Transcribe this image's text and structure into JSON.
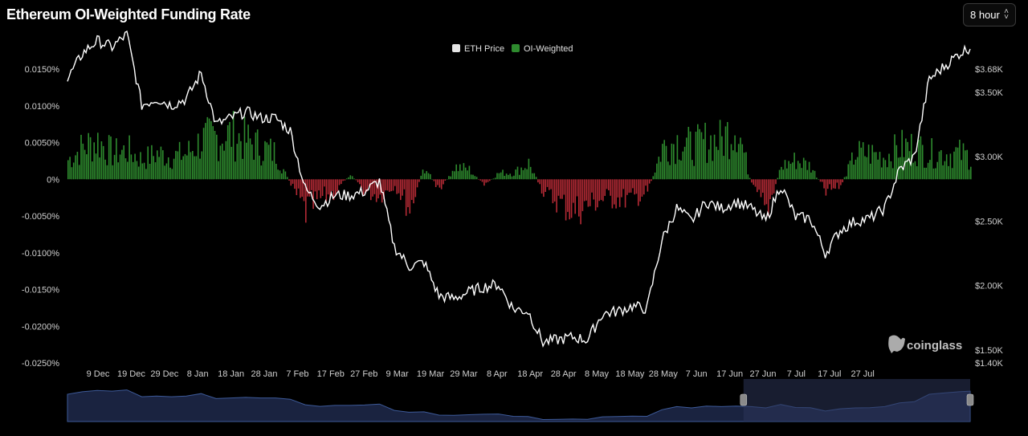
{
  "header": {
    "title": "Ethereum OI-Weighted Funding Rate",
    "interval_value": "8 hour"
  },
  "colors": {
    "positive": "#2e8b2e",
    "negative": "#b52a35",
    "price_line": "#ffffff",
    "navigator_line": "#3d5a99",
    "navigator_fill": "#1a2340",
    "navigator_mask": "#2b3558",
    "axis_text": "#cfcfcf"
  },
  "watermark": "coinglass",
  "chart_data": {
    "type": "bar",
    "title": "Ethereum OI-Weighted Funding Rate",
    "legend": {
      "position": "top-center",
      "items": [
        "ETH Price",
        "OI-Weighted"
      ]
    },
    "x_ticks": [
      "9 Dec",
      "19 Dec",
      "29 Dec",
      "8 Jan",
      "18 Jan",
      "28 Jan",
      "7 Feb",
      "17 Feb",
      "27 Feb",
      "9 Mar",
      "19 Mar",
      "29 Mar",
      "8 Apr",
      "18 Apr",
      "28 Apr",
      "8 May",
      "18 May",
      "28 May",
      "7 Jun",
      "17 Jun",
      "27 Jun",
      "7 Jul",
      "17 Jul",
      "27 Jul"
    ],
    "y_left": {
      "label": "",
      "range": [
        -0.025,
        0.015
      ],
      "tick_values": [
        0.015,
        0.01,
        0.005,
        0,
        -0.005,
        -0.01,
        -0.015,
        -0.02,
        -0.025
      ],
      "tick_labels": [
        "0.0150%",
        "0.0100%",
        "0.0050%",
        "0%",
        "-0.0050%",
        "-0.0100%",
        "-0.0150%",
        "-0.0200%",
        "-0.0250%"
      ]
    },
    "y_right": {
      "label": "",
      "tick_values": [
        3680,
        3500,
        3000,
        2500,
        2000,
        1500,
        1400
      ],
      "tick_labels": [
        "$3.68K",
        "$3.50K",
        "$3.00K",
        "$2.50K",
        "$2.00K",
        "$1.50K",
        "$1.40K"
      ]
    },
    "series": [
      {
        "name": "OI-Weighted",
        "unit": "%",
        "points": [
          [
            "2024-12-01",
            0.003
          ],
          [
            "2024-12-05",
            0.005
          ],
          [
            "2024-12-09",
            0.006
          ],
          [
            "2024-12-13",
            0.004
          ],
          [
            "2024-12-17",
            0.0045
          ],
          [
            "2024-12-21",
            0.003
          ],
          [
            "2024-12-25",
            0.004
          ],
          [
            "2024-12-29",
            0.0035
          ],
          [
            "2025-01-02",
            0.004
          ],
          [
            "2025-01-06",
            0.006
          ],
          [
            "2025-01-10",
            0.0065
          ],
          [
            "2025-01-14",
            0.007
          ],
          [
            "2025-01-18",
            0.006
          ],
          [
            "2025-01-22",
            0.005
          ],
          [
            "2025-01-26",
            0.004
          ],
          [
            "2025-01-30",
            -0.001
          ],
          [
            "2025-02-03",
            -0.005
          ],
          [
            "2025-02-07",
            -0.003
          ],
          [
            "2025-02-11",
            -0.002
          ],
          [
            "2025-02-15",
            0.001
          ],
          [
            "2025-02-19",
            -0.002
          ],
          [
            "2025-02-23",
            -0.0025
          ],
          [
            "2025-02-27",
            -0.001
          ],
          [
            "2025-03-03",
            -0.0045
          ],
          [
            "2025-03-07",
            0.002
          ],
          [
            "2025-03-11",
            -0.002
          ],
          [
            "2025-03-15",
            0.002
          ],
          [
            "2025-03-19",
            0.0015
          ],
          [
            "2025-03-23",
            -0.001
          ],
          [
            "2025-03-27",
            0.001
          ],
          [
            "2025-03-31",
            0.001
          ],
          [
            "2025-04-04",
            0.0025
          ],
          [
            "2025-04-08",
            -0.002
          ],
          [
            "2025-04-12",
            -0.0035
          ],
          [
            "2025-04-16",
            -0.005
          ],
          [
            "2025-04-20",
            -0.004
          ],
          [
            "2025-04-24",
            -0.003
          ],
          [
            "2025-04-28",
            -0.003
          ],
          [
            "2025-05-02",
            -0.003
          ],
          [
            "2025-05-06",
            -0.002
          ],
          [
            "2025-05-10",
            0.005
          ],
          [
            "2025-05-14",
            0.006
          ],
          [
            "2025-05-18",
            0.005
          ],
          [
            "2025-05-22",
            0.006
          ],
          [
            "2025-05-26",
            0.006
          ],
          [
            "2025-05-30",
            0.009
          ],
          [
            "2025-06-03",
            -0.001
          ],
          [
            "2025-06-07",
            -0.005
          ],
          [
            "2025-06-11",
            0.002
          ],
          [
            "2025-06-15",
            0.003
          ],
          [
            "2025-06-19",
            0.002
          ],
          [
            "2025-06-23",
            -0.002
          ],
          [
            "2025-06-27",
            -0.001
          ],
          [
            "2025-07-01",
            0.004
          ],
          [
            "2025-07-05",
            0.004
          ],
          [
            "2025-07-09",
            0.0035
          ],
          [
            "2025-07-13",
            0.005
          ],
          [
            "2025-07-17",
            0.005
          ],
          [
            "2025-07-21",
            0.004
          ],
          [
            "2025-07-25",
            0.004
          ],
          [
            "2025-07-29",
            0.004
          ],
          [
            "2025-08-01",
            0.0035
          ]
        ]
      },
      {
        "name": "ETH Price",
        "unit": "USD",
        "points": [
          [
            "2024-12-01",
            3600
          ],
          [
            "2024-12-05",
            3800
          ],
          [
            "2024-12-09",
            3900
          ],
          [
            "2024-12-13",
            3850
          ],
          [
            "2024-12-17",
            3950
          ],
          [
            "2024-12-21",
            3400
          ],
          [
            "2024-12-25",
            3450
          ],
          [
            "2024-12-29",
            3400
          ],
          [
            "2025-01-02",
            3450
          ],
          [
            "2025-01-06",
            3650
          ],
          [
            "2025-01-10",
            3250
          ],
          [
            "2025-01-14",
            3300
          ],
          [
            "2025-01-18",
            3350
          ],
          [
            "2025-01-22",
            3300
          ],
          [
            "2025-01-26",
            3300
          ],
          [
            "2025-01-30",
            3200
          ],
          [
            "2025-02-03",
            2750
          ],
          [
            "2025-02-07",
            2620
          ],
          [
            "2025-02-11",
            2700
          ],
          [
            "2025-02-15",
            2700
          ],
          [
            "2025-02-19",
            2730
          ],
          [
            "2025-02-23",
            2810
          ],
          [
            "2025-02-27",
            2300
          ],
          [
            "2025-03-03",
            2150
          ],
          [
            "2025-03-07",
            2180
          ],
          [
            "2025-03-11",
            1920
          ],
          [
            "2025-03-15",
            1900
          ],
          [
            "2025-03-19",
            1950
          ],
          [
            "2025-03-23",
            1990
          ],
          [
            "2025-03-27",
            2010
          ],
          [
            "2025-03-31",
            1820
          ],
          [
            "2025-04-04",
            1800
          ],
          [
            "2025-04-08",
            1560
          ],
          [
            "2025-04-12",
            1580
          ],
          [
            "2025-04-16",
            1600
          ],
          [
            "2025-04-20",
            1580
          ],
          [
            "2025-04-24",
            1780
          ],
          [
            "2025-04-28",
            1800
          ],
          [
            "2025-05-02",
            1840
          ],
          [
            "2025-05-06",
            1820
          ],
          [
            "2025-05-10",
            2350
          ],
          [
            "2025-05-14",
            2600
          ],
          [
            "2025-05-18",
            2500
          ],
          [
            "2025-05-22",
            2650
          ],
          [
            "2025-05-26",
            2600
          ],
          [
            "2025-05-30",
            2650
          ],
          [
            "2025-06-03",
            2600
          ],
          [
            "2025-06-07",
            2500
          ],
          [
            "2025-06-11",
            2780
          ],
          [
            "2025-06-15",
            2530
          ],
          [
            "2025-06-19",
            2520
          ],
          [
            "2025-06-23",
            2250
          ],
          [
            "2025-06-27",
            2430
          ],
          [
            "2025-07-01",
            2500
          ],
          [
            "2025-07-05",
            2520
          ],
          [
            "2025-07-09",
            2600
          ],
          [
            "2025-07-13",
            2900
          ],
          [
            "2025-07-17",
            3000
          ],
          [
            "2025-07-21",
            3600
          ],
          [
            "2025-07-25",
            3700
          ],
          [
            "2025-07-29",
            3800
          ],
          [
            "2025-08-01",
            3850
          ]
        ]
      }
    ],
    "grid": false,
    "navigator": {
      "selection": [
        "2025-06-01",
        "2025-08-01"
      ]
    }
  }
}
